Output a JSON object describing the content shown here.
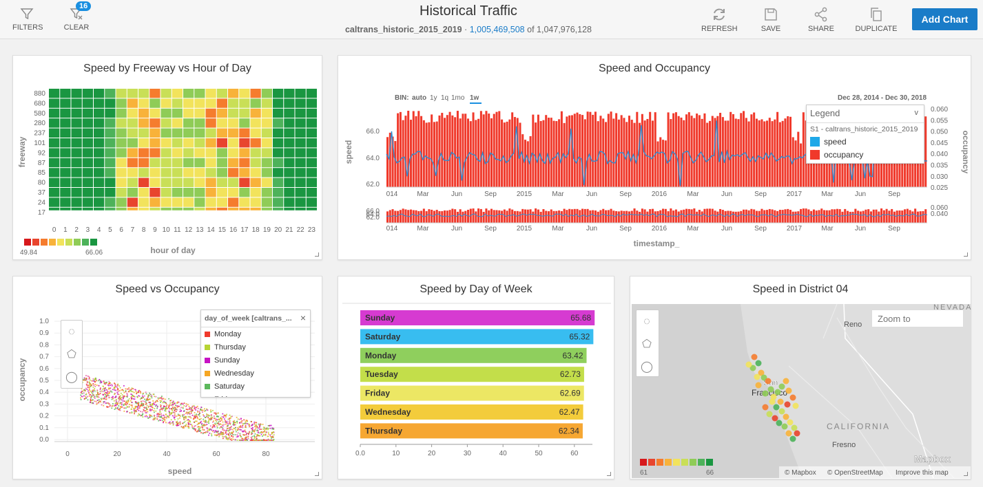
{
  "header": {
    "filters_label": "FILTERS",
    "clear_label": "CLEAR",
    "clear_badge": "16",
    "title": "Historical Traffic",
    "dataset": "caltrans_historic_2015_2019",
    "dot": "·",
    "filtered_count": "1,005,469,508",
    "of_label": "of",
    "total_count": "1,047,976,128",
    "refresh_label": "REFRESH",
    "save_label": "SAVE",
    "share_label": "SHARE",
    "duplicate_label": "DUPLICATE",
    "add_chart_label": "Add Chart"
  },
  "heatmap": {
    "title": "Speed by Freeway vs Hour of Day",
    "ylabel": "freeway",
    "xlabel": "hour of day",
    "freeways": [
      "880",
      "680",
      "580",
      "280",
      "237",
      "101",
      "92",
      "87",
      "85",
      "80",
      "37",
      "24",
      "17"
    ],
    "hours": [
      "0",
      "1",
      "2",
      "3",
      "4",
      "5",
      "6",
      "7",
      "8",
      "9",
      "10",
      "11",
      "12",
      "13",
      "14",
      "15",
      "16",
      "17",
      "18",
      "19",
      "20",
      "21",
      "22",
      "23"
    ],
    "legend_min": "49.84",
    "legend_max": "66.06",
    "palette": [
      "#d7191c",
      "#e8452e",
      "#f57c2e",
      "#f8b23a",
      "#f2e35c",
      "#c9df57",
      "#8fcc57",
      "#4db25a",
      "#1a9641"
    ]
  },
  "combo": {
    "title": "Speed and Occupancy",
    "bin_label": "BIN:",
    "bin_options": [
      "auto",
      "1y",
      "1q",
      "1mo",
      "1w"
    ],
    "date_range": "Dec 28, 2014  -  Dec 30, 2018",
    "ylabel": "speed",
    "y2label": "occupancy",
    "xlabel": "timestamp_",
    "x_ticks": [
      "014",
      "Mar",
      "Jun",
      "Sep",
      "2015",
      "Mar",
      "Jun",
      "Sep",
      "2016",
      "Mar",
      "Jun",
      "Sep",
      "2017",
      "Mar",
      "Jun",
      "Sep"
    ],
    "y_ticks": [
      "66.0",
      "64.0",
      "62.0"
    ],
    "y2_ticks": [
      "0.060",
      "0.055",
      "0.050",
      "0.045",
      "0.040",
      "0.035",
      "0.030",
      "0.025"
    ],
    "mini_y_ticks": [
      "66.0",
      "64.0",
      "62.0"
    ],
    "mini_y2_ticks": [
      "0.060",
      "0.040"
    ],
    "legend_title": "Legend",
    "legend_chevron": "v",
    "legend_source": "S1 - caltrans_historic_2015_2019",
    "legend_items": [
      {
        "label": "speed",
        "color": "#1fa8e8"
      },
      {
        "label": "occupancy",
        "color": "#f0392b"
      }
    ]
  },
  "scatter": {
    "title": "Speed vs Occupancy",
    "xlabel": "speed",
    "ylabel": "occupancy",
    "x_ticks": [
      "0",
      "20",
      "40",
      "60",
      "80"
    ],
    "y_ticks": [
      "1.0",
      "0.9",
      "0.8",
      "0.7",
      "0.6",
      "0.5",
      "0.4",
      "0.3",
      "0.2",
      "0.1",
      "0.0"
    ],
    "legend_title": "day_of_week [caltrans_...",
    "legend_close": "×",
    "legend_items": [
      {
        "label": "Monday",
        "color": "#f0392b"
      },
      {
        "label": "Thursday",
        "color": "#b7d433"
      },
      {
        "label": "Sunday",
        "color": "#c713c4"
      },
      {
        "label": "Wednesday",
        "color": "#f5a623"
      },
      {
        "label": "Saturday",
        "color": "#5cb85c"
      },
      {
        "label": "Friday",
        "color": "#e85fa5"
      }
    ]
  },
  "chart_data": {
    "type": "bar",
    "title": "Speed by Day of Week",
    "categories": [
      "Sunday",
      "Saturday",
      "Monday",
      "Tuesday",
      "Friday",
      "Wednesday",
      "Thursday"
    ],
    "values": [
      65.68,
      65.32,
      63.42,
      62.73,
      62.69,
      62.47,
      62.34
    ],
    "value_labels": [
      "65.68",
      "65.32",
      "63.42",
      "62.73",
      "62.69",
      "62.47",
      "62.34"
    ],
    "colors": [
      "#d63bd1",
      "#38bdf0",
      "#8fcf5d",
      "#c3de4a",
      "#ece764",
      "#f3cc3b",
      "#f6a732"
    ],
    "x_ticks": [
      "0.0",
      "10",
      "20",
      "30",
      "40",
      "50",
      "60"
    ],
    "xlim": [
      0,
      65
    ]
  },
  "map": {
    "title": "Speed in District 04",
    "search_placeholder": "Zoom to",
    "labels": {
      "nevada": "NEVADA",
      "reno": "Reno",
      "san": "San",
      "francisco": "Francisco",
      "california": "CALIFORNIA",
      "fresno": "Fresno",
      "mapbox": "Mapbox"
    },
    "legend_min": "61",
    "legend_max": "66",
    "attribution": [
      "© Mapbox",
      "© OpenStreetMap",
      "Improve this map"
    ]
  }
}
